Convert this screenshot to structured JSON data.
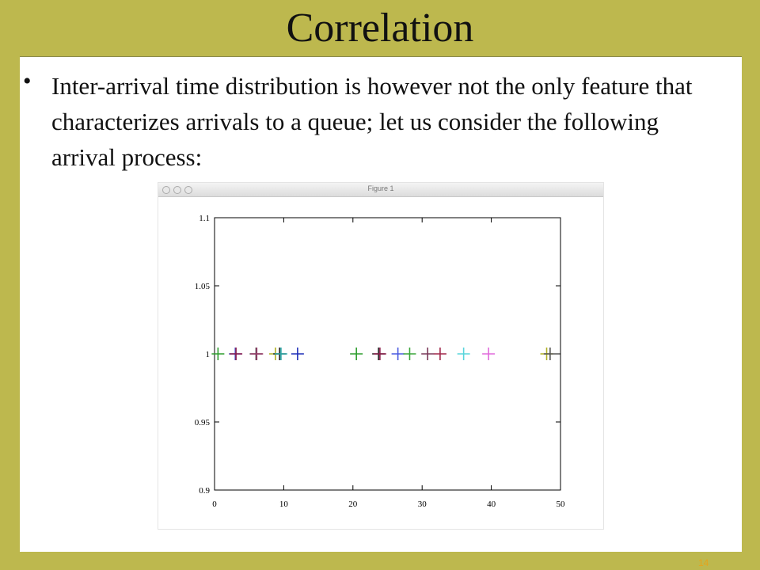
{
  "slide": {
    "title": "Correlation",
    "bullet": "Inter-arrival time distribution is however not the only feature that characterizes arrivals to a queue; let us consider the following arrival process:",
    "page_number": "14"
  },
  "figure_window": {
    "title": "Figure 1"
  },
  "chart_data": {
    "type": "scatter",
    "marker": "+",
    "xlim": [
      0,
      50
    ],
    "ylim": [
      0.9,
      1.1
    ],
    "xticks": [
      0,
      10,
      20,
      30,
      40,
      50
    ],
    "yticks": [
      "0.9",
      "0.95",
      "1",
      "1.05",
      "1.1"
    ],
    "xlabel": "",
    "ylabel": "",
    "grid": false,
    "points": [
      {
        "x": 0.5,
        "y": 1,
        "color": "#2e9e2e"
      },
      {
        "x": 3,
        "y": 1,
        "color": "#3b4fd8"
      },
      {
        "x": 3.1,
        "y": 1,
        "color": "#8b1d4a"
      },
      {
        "x": 6,
        "y": 1,
        "color": "#444444"
      },
      {
        "x": 6.1,
        "y": 1,
        "color": "#9b3b6b"
      },
      {
        "x": 8.8,
        "y": 1,
        "color": "#b0b020"
      },
      {
        "x": 9.4,
        "y": 1,
        "color": "#222222"
      },
      {
        "x": 9.6,
        "y": 1,
        "color": "#2aa7a7"
      },
      {
        "x": 12,
        "y": 1,
        "color": "#1f2fb8"
      },
      {
        "x": 20.5,
        "y": 1,
        "color": "#2e9e2e"
      },
      {
        "x": 23.7,
        "y": 1,
        "color": "#222222"
      },
      {
        "x": 23.9,
        "y": 1,
        "color": "#8b1d4a"
      },
      {
        "x": 26.5,
        "y": 1,
        "color": "#4a5ae0"
      },
      {
        "x": 28.2,
        "y": 1,
        "color": "#3aa63a"
      },
      {
        "x": 30.8,
        "y": 1,
        "color": "#7a3a5a"
      },
      {
        "x": 32.6,
        "y": 1,
        "color": "#a0274a"
      },
      {
        "x": 36,
        "y": 1,
        "color": "#59d5dc"
      },
      {
        "x": 39.6,
        "y": 1,
        "color": "#e06adc"
      },
      {
        "x": 48,
        "y": 1,
        "color": "#b0b020"
      },
      {
        "x": 48.5,
        "y": 1,
        "color": "#555555"
      }
    ]
  }
}
